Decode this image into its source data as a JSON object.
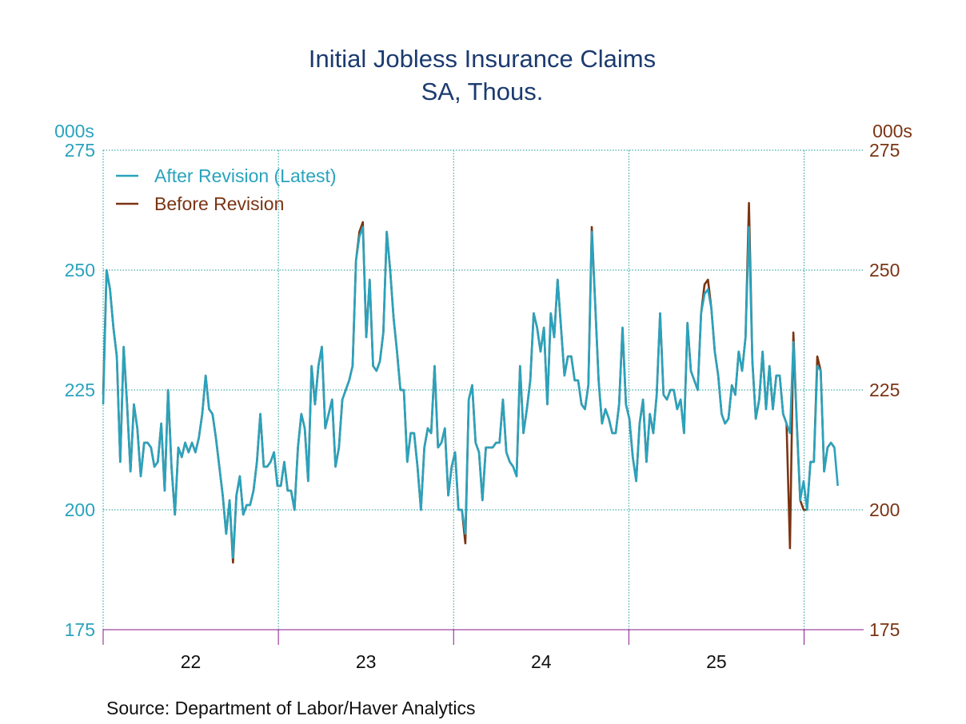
{
  "chart_data": {
    "type": "line",
    "title": "Initial Jobless Insurance Claims",
    "subtitle": "SA, Thous.",
    "y_label": "000s",
    "y2_label": "000s",
    "source": "Source:  Department of Labor/Haver Analytics",
    "xlim": [
      2022,
      2026.34
    ],
    "xticks": [
      {
        "value": 2022.5,
        "label": "22"
      },
      {
        "value": 2023.5,
        "label": "23"
      },
      {
        "value": 2024.5,
        "label": "24"
      },
      {
        "value": 2025.5,
        "label": "25"
      }
    ],
    "xgrid": [
      2023,
      2024,
      2025,
      2026
    ],
    "ylim": [
      175,
      275
    ],
    "yticks": [
      175,
      200,
      225,
      250,
      275
    ],
    "y2lim": [
      175,
      275
    ],
    "y2ticks": [
      175,
      200,
      225,
      250,
      275
    ],
    "y_color": "#2aa3bd",
    "y2_color": "#7b3413",
    "grid": true,
    "legend": "top-left",
    "x": [
      2022,
      2022.0195,
      2022.039,
      2022.0585,
      2022.078,
      2022.0975,
      2022.117,
      2022.1365,
      2022.156,
      2022.1755,
      2022.195,
      2022.2145,
      2022.234,
      2022.2535,
      2022.273,
      2022.2925,
      2022.312,
      2022.3315,
      2022.351,
      2022.3705,
      2022.39,
      2022.4095,
      2022.429,
      2022.4485,
      2022.468,
      2022.4875,
      2022.507,
      2022.5265,
      2022.546,
      2022.5655,
      2022.585,
      2022.6045,
      2022.624,
      2022.6435,
      2022.663,
      2022.6825,
      2022.702,
      2022.7215,
      2022.741,
      2022.7605,
      2022.78,
      2022.7995,
      2022.819,
      2022.8385,
      2022.858,
      2022.8775,
      2022.897,
      2022.9165,
      2022.936,
      2022.9555,
      2022.975,
      2022.9945,
      2023.014,
      2023.0335,
      2023.053,
      2023.0725,
      2023.092,
      2023.1115,
      2023.131,
      2023.1505,
      2023.17,
      2023.1895,
      2023.209,
      2023.2285,
      2023.248,
      2023.2675,
      2023.287,
      2023.3065,
      2023.326,
      2023.3455,
      2023.365,
      2023.3845,
      2023.404,
      2023.4235,
      2023.443,
      2023.4625,
      2023.482,
      2023.5015,
      2023.521,
      2023.5405,
      2023.56,
      2023.5795,
      2023.599,
      2023.6185,
      2023.638,
      2023.6575,
      2023.677,
      2023.6965,
      2023.716,
      2023.7355,
      2023.755,
      2023.7745,
      2023.794,
      2023.8135,
      2023.833,
      2023.8525,
      2023.872,
      2023.8915,
      2023.911,
      2023.9305,
      2023.95,
      2023.9695,
      2023.989,
      2024.0085,
      2024.028,
      2024.0475,
      2024.067,
      2024.0865,
      2024.106,
      2024.1255,
      2024.145,
      2024.1645,
      2024.184,
      2024.2035,
      2024.223,
      2024.2425,
      2024.262,
      2024.2815,
      2024.301,
      2024.3205,
      2024.34,
      2024.3595,
      2024.379,
      2024.3985,
      2024.418,
      2024.4375,
      2024.457,
      2024.4765,
      2024.496,
      2024.5155,
      2024.535,
      2024.5545,
      2024.574,
      2024.5935,
      2024.613,
      2024.6325,
      2024.652,
      2024.6715,
      2024.691,
      2024.7105,
      2024.73,
      2024.7495,
      2024.769,
      2024.7885,
      2024.808,
      2024.8275,
      2024.847,
      2024.8665,
      2024.886,
      2024.9055,
      2024.925,
      2024.9445,
      2024.964,
      2024.9835,
      2025.003,
      2025.0225,
      2025.042,
      2025.0615,
      2025.081,
      2025.1005,
      2025.12,
      2025.1395,
      2025.159,
      2025.1785,
      2025.198,
      2025.2175,
      2025.237,
      2025.2565,
      2025.276,
      2025.2955,
      2025.315,
      2025.3345,
      2025.354,
      2025.3735,
      2025.393,
      2025.4125,
      2025.432,
      2025.4515,
      2025.471,
      2025.4905,
      2025.51,
      2025.5295,
      2025.549,
      2025.5685,
      2025.588,
      2025.6075,
      2025.627,
      2025.6465,
      2025.666,
      2025.6855,
      2025.705,
      2025.7245,
      2025.744,
      2025.7635,
      2025.783,
      2025.8025,
      2025.822,
      2025.8415,
      2025.861,
      2025.8805,
      2025.9,
      2025.9195,
      2025.939,
      2025.9585,
      2025.978,
      2025.9975,
      2026.017,
      2026.0365,
      2026.056,
      2026.0755,
      2026.095,
      2026.1145,
      2026.134,
      2026.1535,
      2026.173,
      2026.1925
    ],
    "series": [
      {
        "name": "Before Revision",
        "color": "#7b3413",
        "values": [
          224,
          250,
          246,
          238,
          232,
          210,
          234,
          222,
          208,
          222,
          217,
          207,
          214,
          214,
          213,
          209,
          210,
          218,
          204,
          225,
          209,
          199,
          213,
          211,
          214,
          212,
          214,
          212,
          215,
          220,
          228,
          221,
          220,
          215,
          209,
          203,
          195,
          202,
          189,
          203,
          207,
          199,
          201,
          201,
          204,
          210,
          220,
          209,
          209,
          210,
          212,
          205,
          205,
          210,
          204,
          204,
          200,
          213,
          220,
          217,
          206,
          230,
          222,
          230,
          234,
          217,
          220,
          223,
          209,
          213,
          223,
          225,
          227,
          230,
          252,
          258,
          260,
          236,
          248,
          230,
          229,
          231,
          237,
          258,
          250,
          240,
          233,
          225,
          225,
          210,
          216,
          216,
          209,
          200,
          213,
          217,
          216,
          230,
          213,
          214,
          217,
          203,
          209,
          212,
          200,
          200,
          193,
          223,
          226,
          214,
          212,
          202,
          213,
          213,
          213,
          214,
          214,
          223,
          212,
          210,
          209,
          207,
          230,
          216,
          221,
          227,
          241,
          238,
          233,
          238,
          222,
          241,
          236,
          248,
          238,
          228,
          232,
          232,
          227,
          227,
          222,
          221,
          226,
          259,
          243,
          227,
          218,
          221,
          219,
          216,
          216,
          222,
          238,
          222,
          219,
          211,
          206,
          218,
          223,
          210,
          220,
          216,
          224,
          241,
          224,
          223,
          225,
          225,
          221,
          223,
          216,
          239,
          229,
          227,
          225,
          241,
          247,
          248,
          242,
          233,
          228,
          220,
          218,
          219,
          226,
          224,
          233,
          229,
          236,
          264,
          231,
          219,
          223,
          233,
          221,
          230,
          221,
          228,
          228,
          220,
          218,
          192,
          237,
          218,
          202,
          200,
          200,
          210,
          210,
          232,
          229,
          208,
          213,
          214,
          213,
          null
        ]
      },
      {
        "name": "After Revision (Latest)",
        "color": "#2aa3bd",
        "values": [
          222,
          250,
          246,
          238,
          232,
          210,
          234,
          222,
          208,
          222,
          217,
          207,
          214,
          214,
          213,
          209,
          210,
          218,
          204,
          225,
          209,
          199,
          213,
          211,
          214,
          212,
          214,
          212,
          215,
          220,
          228,
          221,
          220,
          215,
          209,
          203,
          195,
          202,
          190,
          203,
          207,
          199,
          201,
          201,
          204,
          210,
          220,
          209,
          209,
          210,
          212,
          205,
          205,
          210,
          204,
          204,
          200,
          213,
          220,
          217,
          206,
          230,
          222,
          230,
          234,
          217,
          220,
          223,
          209,
          213,
          223,
          225,
          227,
          230,
          252,
          257,
          259,
          236,
          248,
          230,
          229,
          231,
          237,
          258,
          250,
          240,
          233,
          225,
          225,
          210,
          216,
          216,
          209,
          200,
          213,
          217,
          216,
          230,
          213,
          214,
          217,
          203,
          209,
          212,
          200,
          200,
          195,
          223,
          226,
          214,
          212,
          202,
          213,
          213,
          213,
          214,
          214,
          223,
          212,
          210,
          209,
          207,
          230,
          216,
          221,
          227,
          241,
          238,
          233,
          238,
          222,
          241,
          236,
          248,
          238,
          228,
          232,
          232,
          227,
          227,
          222,
          221,
          226,
          258,
          243,
          227,
          218,
          221,
          219,
          216,
          216,
          222,
          238,
          222,
          219,
          211,
          206,
          218,
          223,
          210,
          220,
          216,
          224,
          241,
          224,
          223,
          225,
          225,
          221,
          223,
          216,
          239,
          229,
          227,
          225,
          241,
          245,
          246,
          242,
          233,
          228,
          220,
          218,
          219,
          226,
          224,
          233,
          229,
          236,
          259,
          231,
          219,
          223,
          233,
          221,
          230,
          221,
          228,
          228,
          220,
          218,
          216,
          235,
          218,
          202,
          206,
          200,
          210,
          210,
          230,
          229,
          208,
          213,
          214,
          213,
          205
        ]
      }
    ]
  }
}
